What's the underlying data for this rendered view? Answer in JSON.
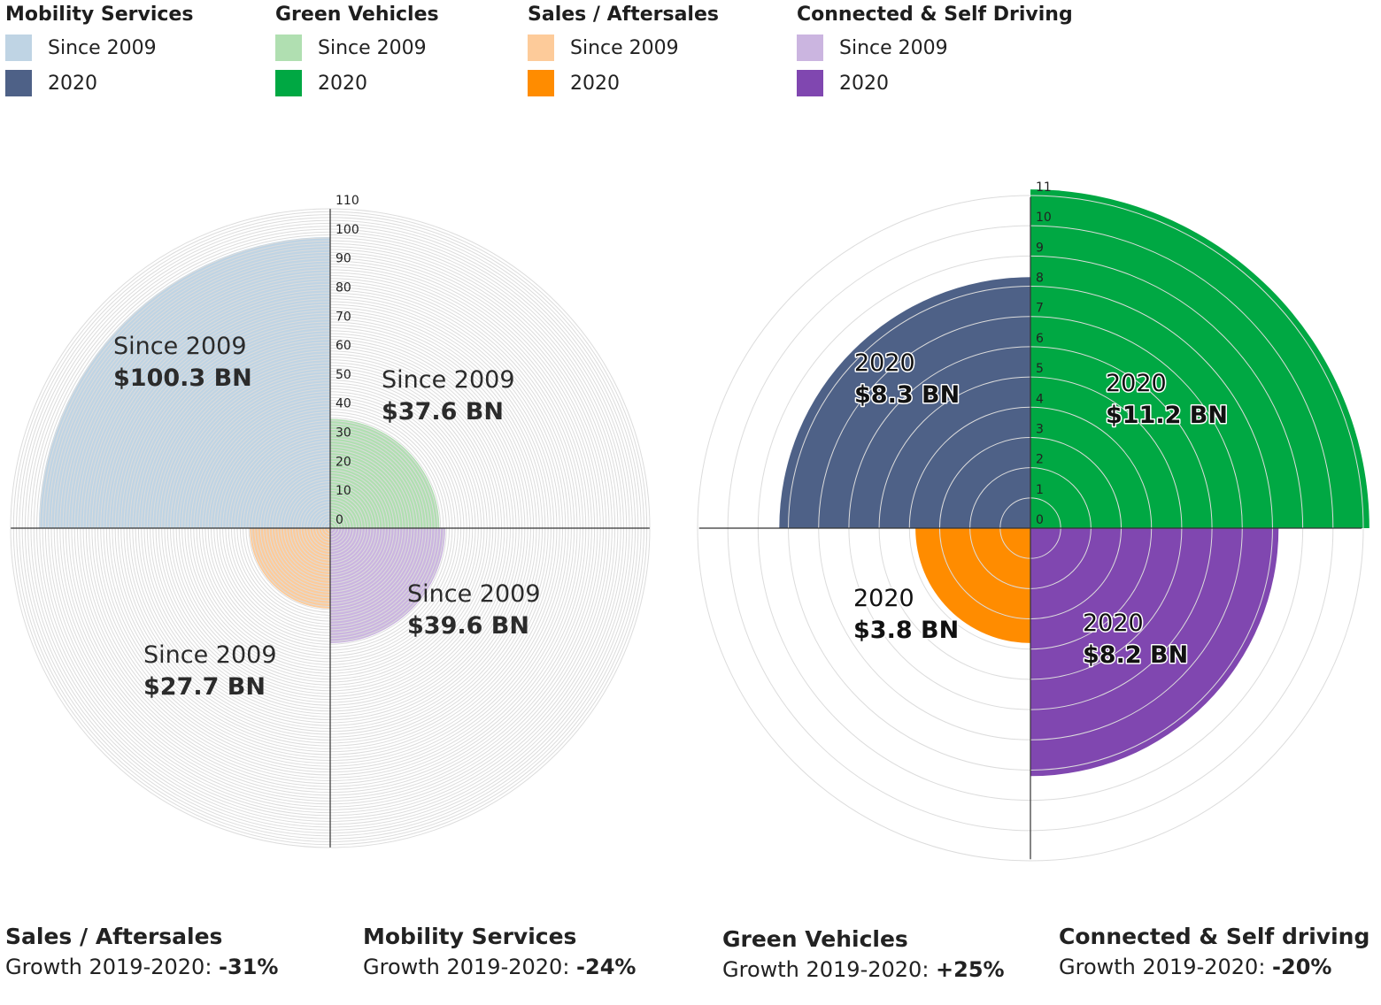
{
  "legend": [
    {
      "title": "Mobility Services",
      "items": [
        {
          "label": "Since 2009",
          "color": "#bfd4e4"
        },
        {
          "label": "2020",
          "color": "#4e6187"
        }
      ]
    },
    {
      "title": "Green Vehicles",
      "items": [
        {
          "label": "Since 2009",
          "color": "#b0dfb1"
        },
        {
          "label": "2020",
          "color": "#00a843"
        }
      ]
    },
    {
      "title": "Sales / Aftersales",
      "items": [
        {
          "label": "Since 2009",
          "color": "#fdcb9a"
        },
        {
          "label": "2020",
          "color": "#ff8c00"
        }
      ]
    },
    {
      "title": "Connected & Self Driving",
      "items": [
        {
          "label": "Since 2009",
          "color": "#cbb5e0"
        },
        {
          "label": "2020",
          "color": "#8047b0"
        }
      ]
    }
  ],
  "chart_data": [
    {
      "type": "polar-area",
      "title": "Since 2009",
      "unit": "$ BN",
      "radial_axis": {
        "min": 0,
        "max": 110,
        "ticks": [
          "0",
          "10",
          "20",
          "30",
          "40",
          "50",
          "60",
          "70",
          "80",
          "90",
          "100",
          "110"
        ]
      },
      "slices": [
        {
          "category": "Mobility Services",
          "quadrant": "top-left",
          "value": 100.3,
          "line1": "Since 2009",
          "line2": "$100.3 BN",
          "color": "#bfd4e4"
        },
        {
          "category": "Green Vehicles",
          "quadrant": "top-right",
          "value": 37.6,
          "line1": "Since 2009",
          "line2": "$37.6 BN",
          "color": "#b0dfb1"
        },
        {
          "category": "Connected & Self Driving",
          "quadrant": "bottom-right",
          "value": 39.6,
          "line1": "Since 2009",
          "line2": "$39.6 BN",
          "color": "#cbb5e0"
        },
        {
          "category": "Sales / Aftersales",
          "quadrant": "bottom-left",
          "value": 27.7,
          "line1": "Since 2009",
          "line2": "$27.7 BN",
          "color": "#fdcb9a"
        }
      ]
    },
    {
      "type": "polar-area",
      "title": "2020",
      "unit": "$ BN",
      "radial_axis": {
        "min": 0,
        "max": 11,
        "ticks": [
          "0",
          "1",
          "2",
          "3",
          "4",
          "5",
          "6",
          "7",
          "8",
          "9",
          "10",
          "11"
        ]
      },
      "slices": [
        {
          "category": "Mobility Services",
          "quadrant": "top-left",
          "value": 8.3,
          "line1": "2020",
          "line2": "$8.3 BN",
          "color": "#4e6187"
        },
        {
          "category": "Green Vehicles",
          "quadrant": "top-right",
          "value": 11.2,
          "line1": "2020",
          "line2": "$11.2 BN",
          "color": "#00a843"
        },
        {
          "category": "Connected & Self Driving",
          "quadrant": "bottom-right",
          "value": 8.2,
          "line1": "2020",
          "line2": "$8.2 BN",
          "color": "#8047b0"
        },
        {
          "category": "Sales / Aftersales",
          "quadrant": "bottom-left",
          "value": 3.8,
          "line1": "2020",
          "line2": "$3.8 BN",
          "color": "#ff8c00"
        }
      ]
    }
  ],
  "growth": [
    {
      "title": "Sales / Aftersales",
      "prefix": "Growth 2019-2020: ",
      "value": "-31%"
    },
    {
      "title": "Mobility Services",
      "prefix": "Growth 2019-2020: ",
      "value": "-24%"
    },
    {
      "title": "Green Vehicles",
      "prefix": "Growth 2019-2020: ",
      "value": "+25%"
    },
    {
      "title": "Connected & Self driving",
      "prefix": "Growth 2019-2020: ",
      "value": "-20%"
    }
  ]
}
